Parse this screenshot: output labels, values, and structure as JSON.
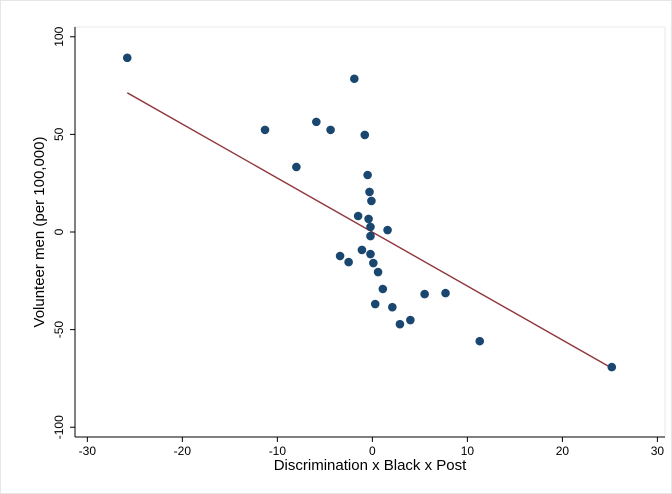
{
  "chart_data": {
    "type": "scatter",
    "x_label": "Discrimination x Black x Post",
    "y_label": "Volunteer men (per 100,000)",
    "xlim": [
      -31.3,
      30.8
    ],
    "ylim": [
      -105,
      105
    ],
    "xticks": [
      -30,
      -20,
      -10,
      0,
      10,
      20,
      30
    ],
    "yticks": [
      -100,
      -50,
      0,
      50,
      100
    ],
    "x": [
      -25.8,
      -1.9,
      -11.3,
      -5.9,
      -4.4,
      -0.8,
      -8.0,
      -0.5,
      -0.3,
      -0.1,
      -1.5,
      -0.4,
      -0.2,
      -0.2,
      1.6,
      -1.1,
      -3.4,
      -0.2,
      0.1,
      -2.5,
      0.6,
      1.1,
      0.3,
      2.1,
      5.5,
      7.7,
      4.0,
      2.9,
      11.3,
      25.2
    ],
    "values": [
      89.2,
      78.5,
      52.3,
      56.4,
      52.3,
      49.7,
      33.3,
      29.2,
      20.5,
      15.9,
      8.2,
      6.7,
      2.6,
      -2.1,
      1.0,
      -9.2,
      -12.3,
      -11.3,
      -15.9,
      -15.4,
      -20.5,
      -29.2,
      -36.9,
      -38.5,
      -31.8,
      -31.3,
      -45.1,
      -47.2,
      -55.9,
      -69.2
    ],
    "color": "#1a476f",
    "fit_x": [
      -25.8,
      25.2
    ],
    "fit_values": [
      71.3,
      -69.7
    ],
    "fit_color": "#90353b"
  }
}
